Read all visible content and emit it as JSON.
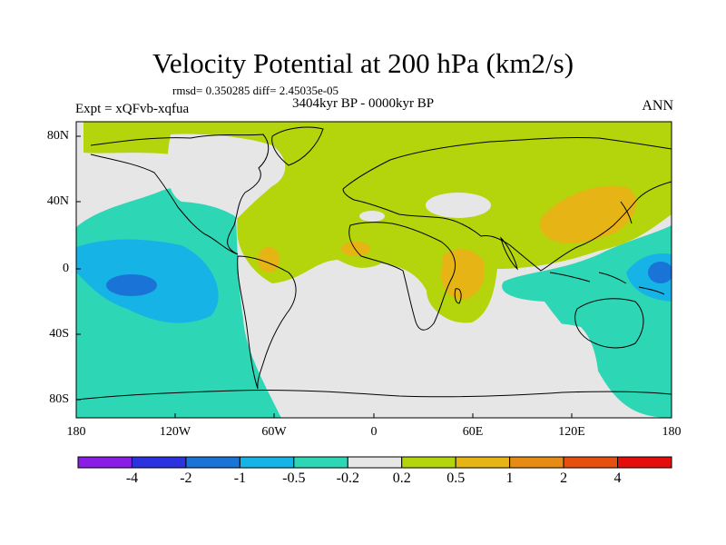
{
  "header": {
    "title": "Velocity Potential at 200 hPa (km2/s)",
    "stats": "rmsd= 0.350285 diff= 2.45035e-05",
    "period": "3404kyr BP - 0000kyr BP",
    "experiment": "Expt = xQFvb-xqfua",
    "season": "ANN"
  },
  "map": {
    "projection": "cylindrical equidistant",
    "lon_range": [
      -180,
      180
    ],
    "lat_range": [
      -90,
      90
    ],
    "y_ticks": [
      "80N",
      "40N",
      "0",
      "40S",
      "80S"
    ],
    "x_ticks": [
      "180",
      "120W",
      "60W",
      "0",
      "60E",
      "120E",
      "180"
    ]
  },
  "colorbar": {
    "labels": [
      "-4",
      "-2",
      "-1",
      "-0.5",
      "-0.2",
      "0.2",
      "0.5",
      "1",
      "2",
      "4"
    ],
    "colors": [
      "#8a1ee6",
      "#2d32e0",
      "#1a74d8",
      "#16b4e6",
      "#2dd6b4",
      "#e6e6e6",
      "#b4d40c",
      "#e6b414",
      "#e68c14",
      "#e6500e",
      "#e60c0c"
    ]
  },
  "colors": {
    "neutral": "#e6e6e6",
    "pos_weak": "#b4d40c",
    "pos_mid": "#e6b414",
    "neg_weak": "#2dd6b4",
    "neg_mid": "#16b4e6",
    "neg_strong": "#1a74d8",
    "coast": "#000000"
  }
}
